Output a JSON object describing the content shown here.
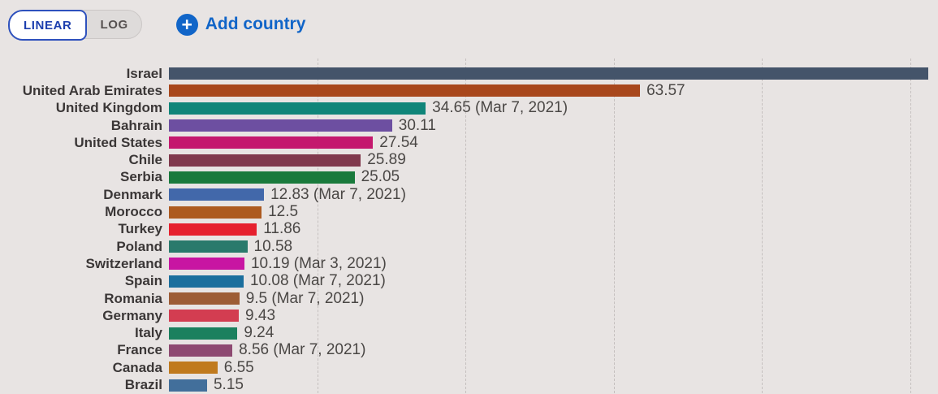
{
  "controls": {
    "linear_label": "LINEAR",
    "log_label": "LOG",
    "add_country_label": "Add country",
    "accent_blue": "#1165c8",
    "linear_text_color": "#1d3fae",
    "linear_border_color": "#2e51bd",
    "log_text_color": "#565150"
  },
  "chart_data": {
    "type": "bar",
    "orientation": "horizontal",
    "title": "",
    "xlabel": "",
    "ylabel": "",
    "xlim": [
      0,
      103.7
    ],
    "gridline_values": [
      20,
      40,
      60,
      80,
      100
    ],
    "grid_style": "dashed-vertical",
    "legend": "none",
    "categories": [
      "Israel",
      "United Arab Emirates",
      "United Kingdom",
      "Bahrain",
      "United States",
      "Chile",
      "Serbia",
      "Denmark",
      "Morocco",
      "Turkey",
      "Poland",
      "Switzerland",
      "Spain",
      "Romania",
      "Germany",
      "Italy",
      "France",
      "Canada",
      "Brazil"
    ],
    "series": [
      {
        "country": "Israel",
        "value": 102.5,
        "label": "",
        "color": "#44546a"
      },
      {
        "country": "United Arab Emirates",
        "value": 63.57,
        "label": "63.57",
        "color": "#a8471c"
      },
      {
        "country": "United Kingdom",
        "value": 34.65,
        "label": "34.65 (Mar 7, 2021)",
        "color": "#108579"
      },
      {
        "country": "Bahrain",
        "value": 30.11,
        "label": "30.11",
        "color": "#6d4fa1"
      },
      {
        "country": "United States",
        "value": 27.54,
        "label": "27.54",
        "color": "#c4186e"
      },
      {
        "country": "Chile",
        "value": 25.89,
        "label": "25.89",
        "color": "#80394d"
      },
      {
        "country": "Serbia",
        "value": 25.05,
        "label": "25.05",
        "color": "#1a7a3c"
      },
      {
        "country": "Denmark",
        "value": 12.83,
        "label": "12.83 (Mar 7, 2021)",
        "color": "#4268aa"
      },
      {
        "country": "Morocco",
        "value": 12.5,
        "label": "12.5",
        "color": "#ad5a1f"
      },
      {
        "country": "Turkey",
        "value": 11.86,
        "label": "11.86",
        "color": "#e6202e"
      },
      {
        "country": "Poland",
        "value": 10.58,
        "label": "10.58",
        "color": "#2a7a6c"
      },
      {
        "country": "Switzerland",
        "value": 10.19,
        "label": "10.19 (Mar 3, 2021)",
        "color": "#c815a2"
      },
      {
        "country": "Spain",
        "value": 10.08,
        "label": "10.08 (Mar 7, 2021)",
        "color": "#1c6f9d"
      },
      {
        "country": "Romania",
        "value": 9.5,
        "label": "9.5 (Mar 7, 2021)",
        "color": "#9d5c35"
      },
      {
        "country": "Germany",
        "value": 9.43,
        "label": "9.43",
        "color": "#d33d51"
      },
      {
        "country": "Italy",
        "value": 9.24,
        "label": "9.24",
        "color": "#1b805e"
      },
      {
        "country": "France",
        "value": 8.56,
        "label": "8.56 (Mar 7, 2021)",
        "color": "#8e4a72"
      },
      {
        "country": "Canada",
        "value": 6.55,
        "label": "6.55",
        "color": "#c07a1e"
      },
      {
        "country": "Brazil",
        "value": 5.15,
        "label": "5.15",
        "color": "#426f9b"
      }
    ]
  }
}
